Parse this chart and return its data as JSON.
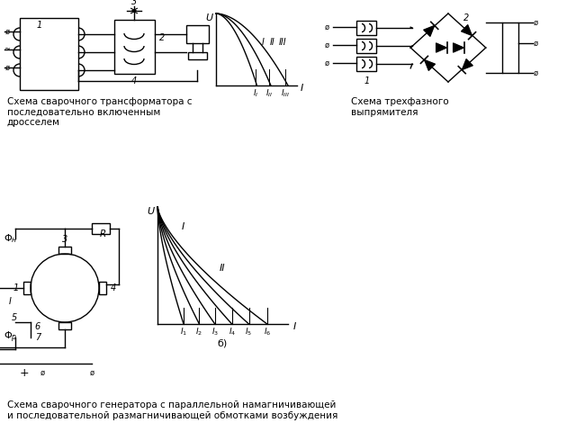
{
  "bg_color": "#ffffff",
  "line_color": "#000000",
  "text_color": "#000000",
  "title1": "Схема сварочного трансформатора с\nпоследовательно включенным\nдросселем",
  "title2": "Схема трехфазного\nвыпрямителя",
  "title3": "Схема сварочного генератора с параллельной намагничивающей\nи последовательной размагничивающей обмотками возбуждения",
  "fig_width": 6.4,
  "fig_height": 4.8,
  "dpi": 100
}
